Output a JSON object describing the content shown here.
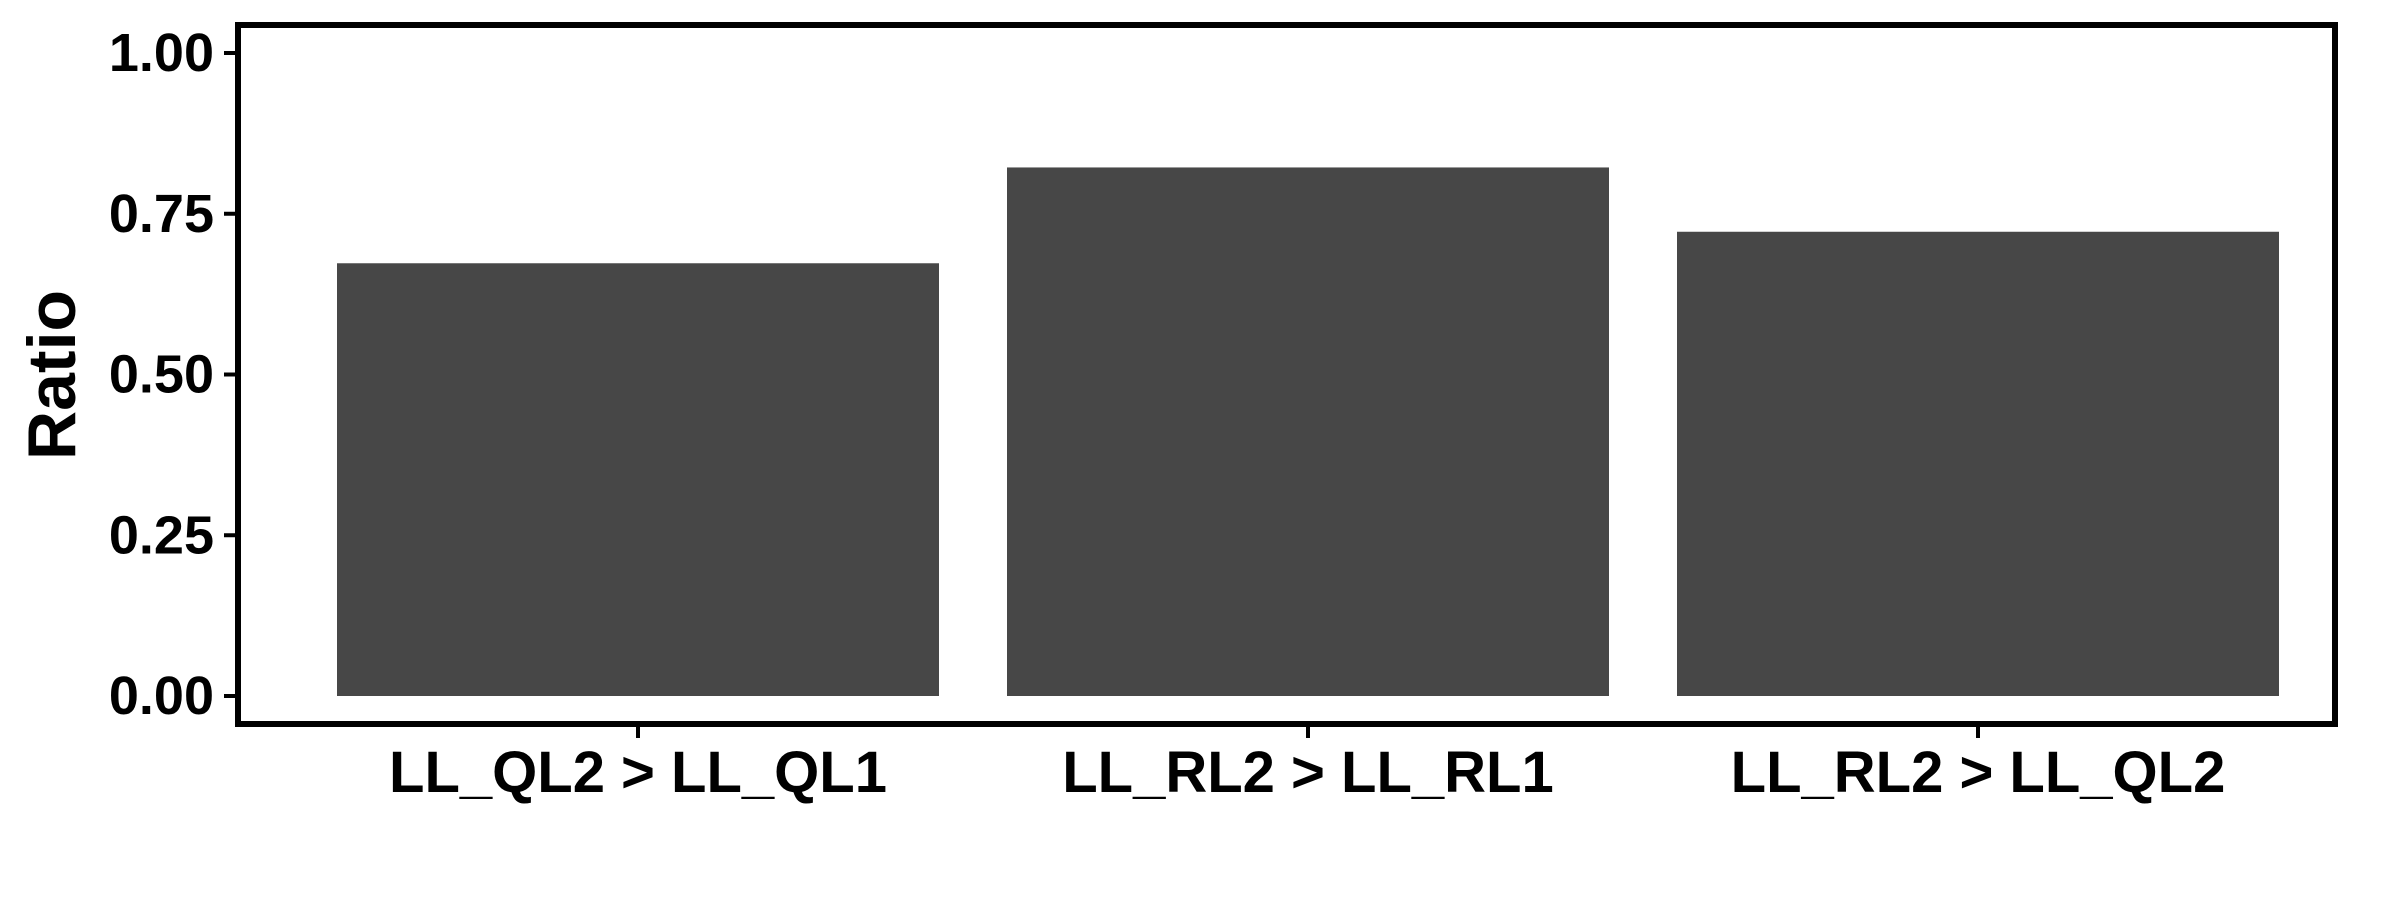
{
  "chart_data": {
    "type": "bar",
    "categories": [
      "LL_QL2 > LL_QL1",
      "LL_RL2 > LL_RL1",
      "LL_RL2 > LL_QL2"
    ],
    "values": [
      0.673,
      0.822,
      0.722
    ],
    "title": "",
    "xlabel": "",
    "ylabel": "Ratio",
    "ylim": [
      0,
      1.0
    ],
    "yticks": [
      "0.00",
      "0.25",
      "0.50",
      "0.75",
      "1.00"
    ],
    "grid": false,
    "legend": "none",
    "bar_color": "#474747"
  }
}
